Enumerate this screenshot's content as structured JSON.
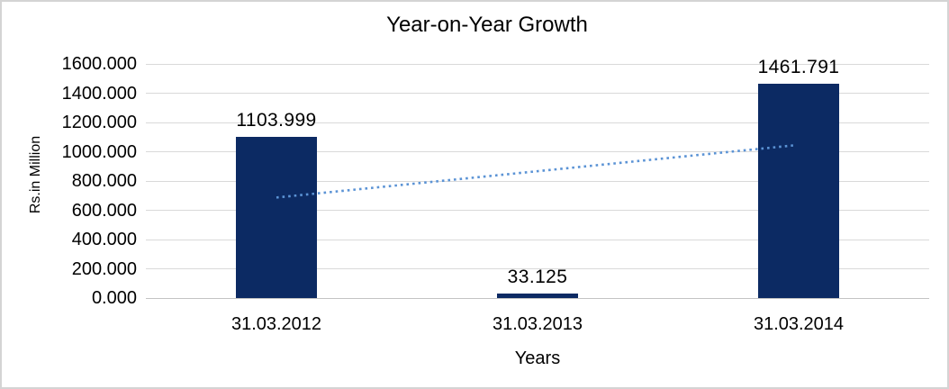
{
  "chart_data": {
    "type": "bar",
    "title": "Year-on-Year Growth",
    "xlabel": "Years",
    "ylabel": "Rs.in Million",
    "categories": [
      "31.03.2012",
      "31.03.2013",
      "31.03.2014"
    ],
    "values": [
      1103.999,
      33.125,
      1461.791
    ],
    "data_labels": [
      "1103.999",
      "33.125",
      "1461.791"
    ],
    "y_ticks": [
      "0.000",
      "200.000",
      "400.000",
      "600.000",
      "800.000",
      "1000.000",
      "1200.000",
      "1400.000",
      "1600.000"
    ],
    "ylim": [
      0,
      1600
    ],
    "grid": "horizontal",
    "legend": "none",
    "trendline": {
      "type": "linear",
      "style": "dotted",
      "start_value": 687,
      "end_value": 1045
    },
    "colors": {
      "bar": "#0c2a63",
      "trendline": "#5b93d5",
      "gridline": "#d9d9d9",
      "axis_line": "#c3c3c3",
      "text": "#000000",
      "border": "#d4d4d4"
    }
  }
}
